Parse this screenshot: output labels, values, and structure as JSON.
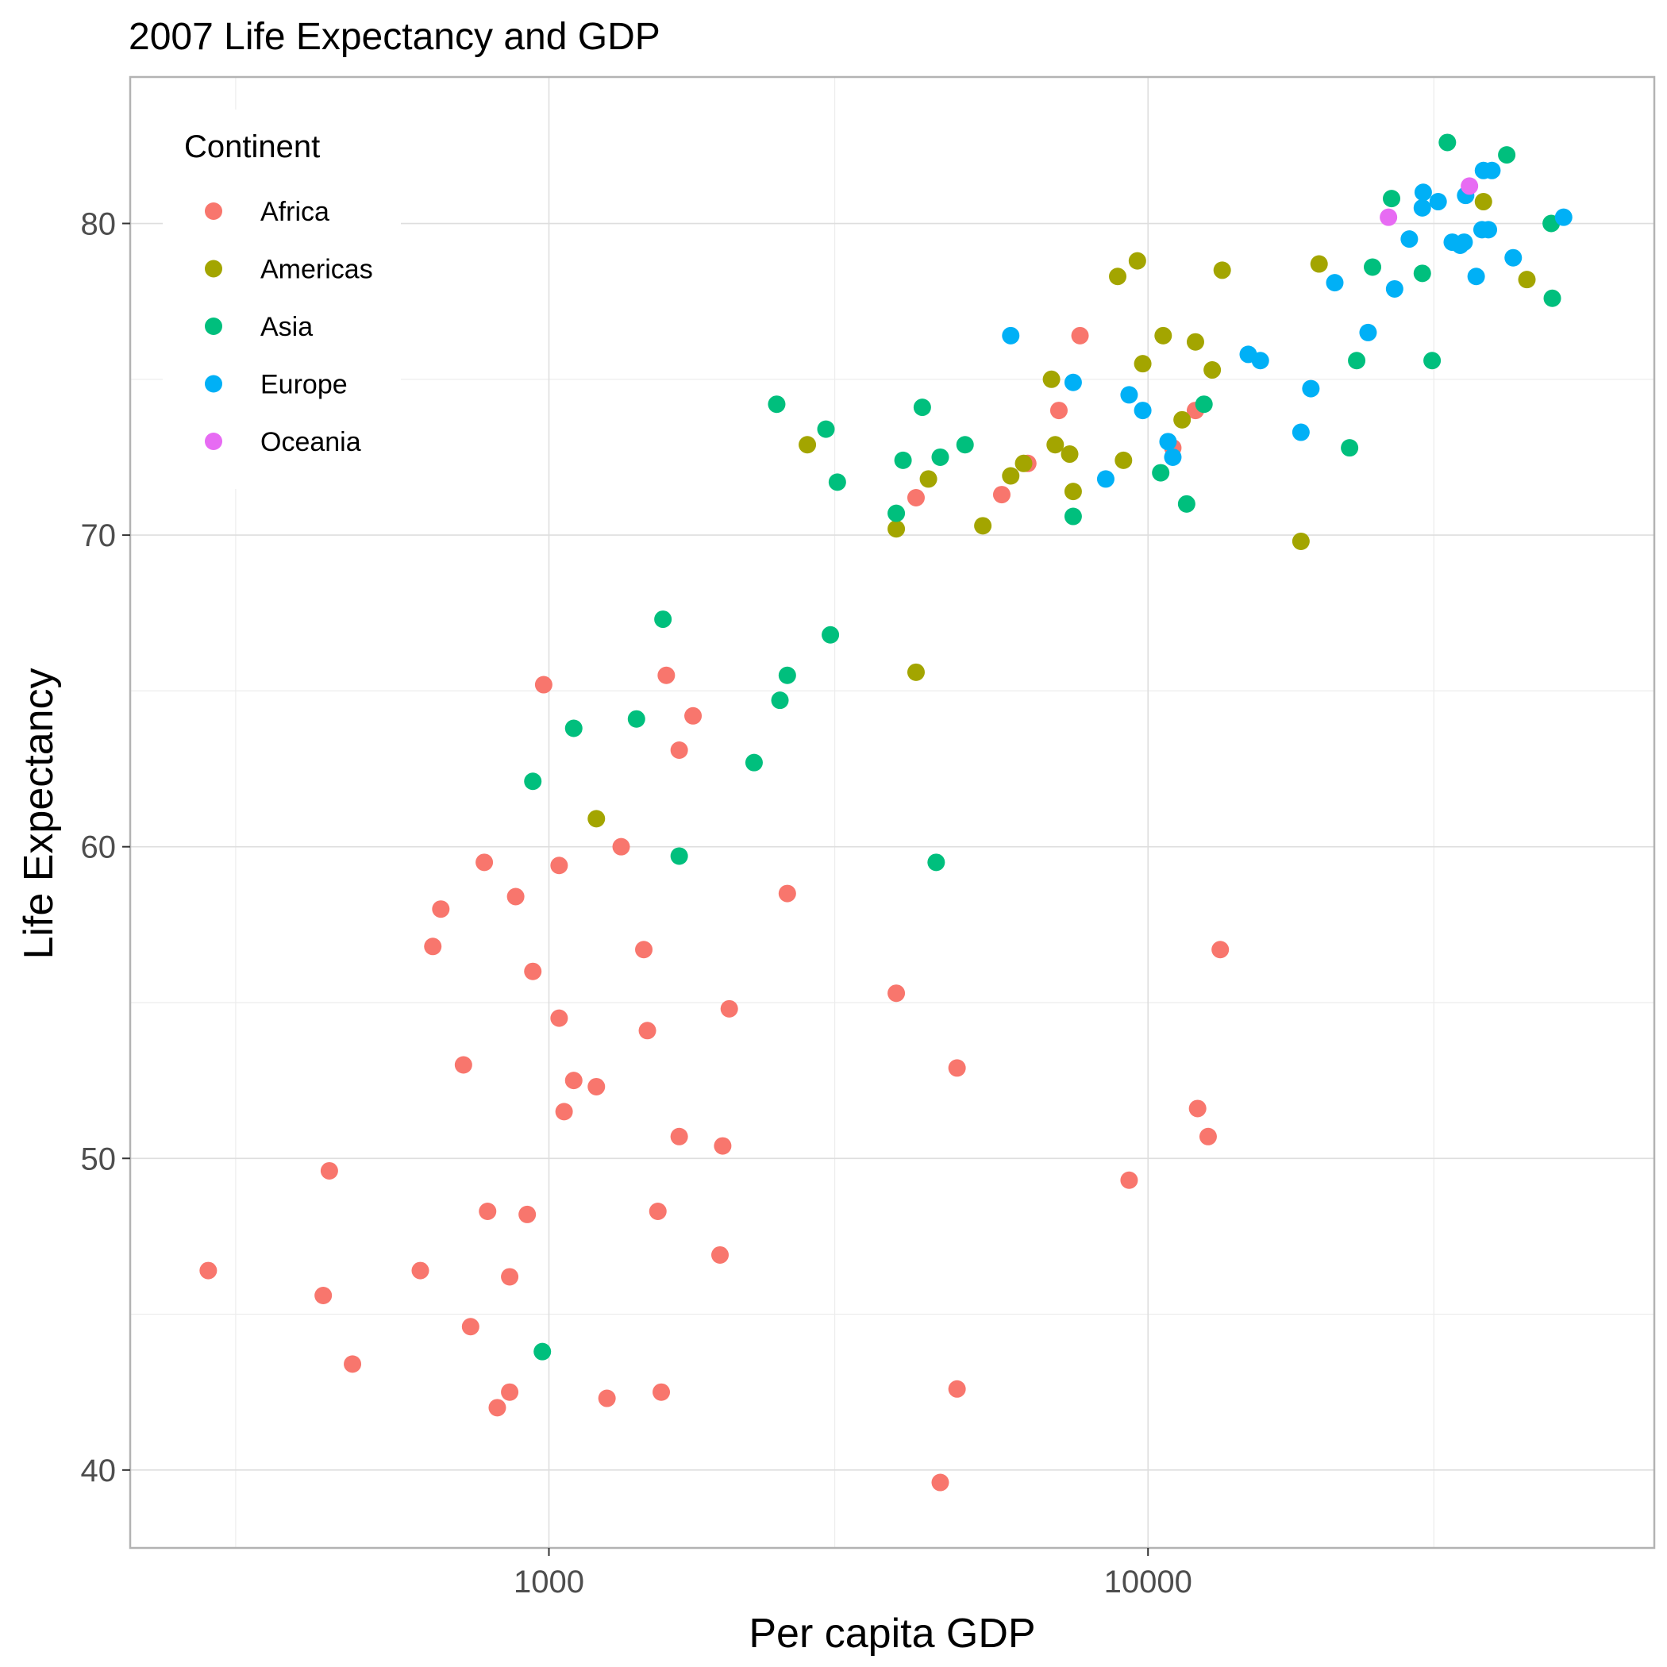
{
  "chart_data": {
    "type": "scatter",
    "title": "2007 Life Expectancy and GDP",
    "xlabel": "Per capita GDP",
    "ylabel": "Life Expectancy",
    "x_scale": "log10",
    "xlim": [
      200,
      70000
    ],
    "ylim": [
      37.5,
      84.7
    ],
    "x_ticks": [
      1000,
      10000
    ],
    "x_tick_labels": [
      "1000",
      "10000"
    ],
    "x_minor_ticks": [
      300,
      3000,
      30000
    ],
    "y_ticks": [
      40,
      50,
      60,
      70,
      80
    ],
    "y_tick_labels": [
      "40",
      "50",
      "60",
      "70",
      "80"
    ],
    "y_minor_ticks": [
      45,
      55,
      65,
      75
    ],
    "grid": true,
    "legend": {
      "title": "Continent",
      "position": "top-left inside"
    },
    "series": [
      {
        "name": "Africa",
        "color": "#F8766D",
        "points": [
          [
            270,
            46.4
          ],
          [
            420,
            45.6
          ],
          [
            430,
            49.6
          ],
          [
            470,
            43.4
          ],
          [
            610,
            46.4
          ],
          [
            640,
            56.8
          ],
          [
            660,
            58.0
          ],
          [
            720,
            53.0
          ],
          [
            740,
            44.6
          ],
          [
            780,
            59.5
          ],
          [
            790,
            48.3
          ],
          [
            820,
            42.0
          ],
          [
            860,
            46.2
          ],
          [
            860,
            42.5
          ],
          [
            880,
            58.4
          ],
          [
            920,
            48.2
          ],
          [
            940,
            56.0
          ],
          [
            980,
            65.2
          ],
          [
            1040,
            59.4
          ],
          [
            1040,
            54.5
          ],
          [
            1060,
            51.5
          ],
          [
            1100,
            52.5
          ],
          [
            1200,
            52.3
          ],
          [
            1250,
            42.3
          ],
          [
            1320,
            60.0
          ],
          [
            1440,
            56.7
          ],
          [
            1460,
            54.1
          ],
          [
            1520,
            48.3
          ],
          [
            1540,
            42.5
          ],
          [
            1570,
            65.5
          ],
          [
            1650,
            50.7
          ],
          [
            1650,
            63.1
          ],
          [
            1740,
            64.2
          ],
          [
            1930,
            46.9
          ],
          [
            1950,
            50.4
          ],
          [
            2000,
            54.8
          ],
          [
            2500,
            58.5
          ],
          [
            3800,
            55.3
          ],
          [
            4100,
            71.2
          ],
          [
            4500,
            39.6
          ],
          [
            4800,
            52.9
          ],
          [
            4800,
            42.6
          ],
          [
            5700,
            71.3
          ],
          [
            6300,
            72.3
          ],
          [
            7100,
            74.0
          ],
          [
            7700,
            76.4
          ],
          [
            11000,
            72.8
          ],
          [
            12000,
            74.0
          ],
          [
            12100,
            51.6
          ],
          [
            12600,
            50.7
          ],
          [
            13200,
            56.7
          ],
          [
            9300,
            49.3
          ]
        ]
      },
      {
        "name": "Americas",
        "color": "#A3A500",
        "points": [
          [
            1200,
            60.9
          ],
          [
            2700,
            72.9
          ],
          [
            3800,
            70.2
          ],
          [
            4100,
            65.6
          ],
          [
            4300,
            71.8
          ],
          [
            5300,
            70.3
          ],
          [
            5900,
            71.9
          ],
          [
            6200,
            72.3
          ],
          [
            6900,
            75.0
          ],
          [
            7000,
            72.9
          ],
          [
            7400,
            72.6
          ],
          [
            7500,
            71.4
          ],
          [
            8900,
            78.3
          ],
          [
            9100,
            72.4
          ],
          [
            9600,
            78.8
          ],
          [
            9800,
            75.5
          ],
          [
            10600,
            76.4
          ],
          [
            11400,
            73.7
          ],
          [
            12000,
            76.2
          ],
          [
            12800,
            75.3
          ],
          [
            13300,
            78.5
          ],
          [
            18000,
            69.8
          ],
          [
            19300,
            78.7
          ],
          [
            36300,
            80.7
          ],
          [
            42900,
            78.2
          ]
        ]
      },
      {
        "name": "Asia",
        "color": "#00BF7D",
        "points": [
          [
            940,
            62.1
          ],
          [
            975,
            43.8
          ],
          [
            1100,
            63.8
          ],
          [
            1400,
            64.1
          ],
          [
            1550,
            67.3
          ],
          [
            1650,
            59.7
          ],
          [
            2200,
            62.7
          ],
          [
            2400,
            74.2
          ],
          [
            2500,
            65.5
          ],
          [
            2430,
            64.7
          ],
          [
            2900,
            73.4
          ],
          [
            2950,
            66.8
          ],
          [
            3030,
            71.7
          ],
          [
            3800,
            70.7
          ],
          [
            3900,
            72.4
          ],
          [
            4200,
            74.1
          ],
          [
            4500,
            72.5
          ],
          [
            4430,
            59.5
          ],
          [
            4950,
            72.9
          ],
          [
            7500,
            70.6
          ],
          [
            10500,
            72.0
          ],
          [
            11600,
            71.0
          ],
          [
            12400,
            74.2
          ],
          [
            21700,
            72.8
          ],
          [
            22300,
            75.6
          ],
          [
            23700,
            78.6
          ],
          [
            25500,
            80.8
          ],
          [
            28700,
            78.4
          ],
          [
            29800,
            75.6
          ],
          [
            31600,
            82.6
          ],
          [
            39700,
            82.2
          ],
          [
            47100,
            80.0
          ],
          [
            47300,
            77.6
          ]
        ]
      },
      {
        "name": "Europe",
        "color": "#00B0F6",
        "points": [
          [
            5900,
            76.4
          ],
          [
            7500,
            74.9
          ],
          [
            8500,
            71.8
          ],
          [
            9300,
            74.5
          ],
          [
            9800,
            74.0
          ],
          [
            10800,
            73.0
          ],
          [
            11000,
            72.5
          ],
          [
            14700,
            75.8
          ],
          [
            15400,
            75.6
          ],
          [
            18000,
            73.3
          ],
          [
            18700,
            74.7
          ],
          [
            20500,
            78.1
          ],
          [
            23300,
            76.5
          ],
          [
            25800,
            77.9
          ],
          [
            27300,
            79.5
          ],
          [
            28700,
            80.5
          ],
          [
            28800,
            81.0
          ],
          [
            30500,
            80.7
          ],
          [
            32200,
            79.4
          ],
          [
            33200,
            79.3
          ],
          [
            33700,
            79.4
          ],
          [
            33900,
            80.9
          ],
          [
            35300,
            78.3
          ],
          [
            36100,
            79.8
          ],
          [
            36300,
            81.7
          ],
          [
            37000,
            79.8
          ],
          [
            37500,
            81.7
          ],
          [
            40700,
            78.9
          ],
          [
            49400,
            80.2
          ]
        ]
      },
      {
        "name": "Oceania",
        "color": "#E76BF3",
        "points": [
          [
            25200,
            80.2
          ],
          [
            34400,
            81.2
          ]
        ]
      }
    ]
  }
}
